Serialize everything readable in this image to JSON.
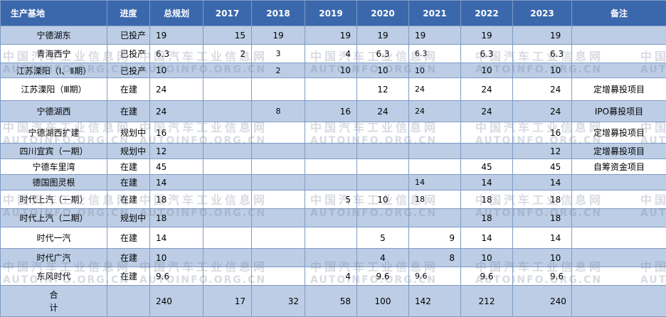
{
  "table": {
    "headers": [
      "生产基地",
      "进度",
      "总规划",
      "2017",
      "2018",
      "2019",
      "2020",
      "2021",
      "2022",
      "2023",
      "备注"
    ],
    "rows": [
      {
        "base": "宁德湖东",
        "status": "已投产",
        "total": "19",
        "y2017": "15",
        "y2018": "19",
        "y2019": "19",
        "y2020": "19",
        "y2021": "19",
        "y2022": "19",
        "y2023": "19",
        "note": ""
      },
      {
        "base": "青海西宁",
        "status": "已投产",
        "total": "6.3",
        "y2017": "2",
        "y2018": "3",
        "y2019": "4",
        "y2020": "6.3",
        "y2021": "6.3",
        "y2022": "6.3",
        "y2023": "6.3",
        "note": ""
      },
      {
        "base": "江苏溧阳（Ⅰ、Ⅱ期）",
        "status": "已投产",
        "total": "10",
        "y2017": "",
        "y2018": "2",
        "y2019": "10",
        "y2020": "10",
        "y2021": "10",
        "y2022": "10",
        "y2023": "10",
        "note": ""
      },
      {
        "base": "江苏溧阳（Ⅲ期）",
        "status": "在建",
        "total": "24",
        "y2017": "",
        "y2018": "",
        "y2019": "",
        "y2020": "12",
        "y2021": "24",
        "y2022": "24",
        "y2023": "24",
        "note": "定增募投项目"
      },
      {
        "base": "宁德湖西",
        "status": "在建",
        "total": "24",
        "y2017": "",
        "y2018": "8",
        "y2019": "16",
        "y2020": "24",
        "y2021": "24",
        "y2022": "24",
        "y2023": "24",
        "note": "IPO募投项目"
      },
      {
        "base": "宁德湖西扩建",
        "status": "规划中",
        "total": "16",
        "y2017": "",
        "y2018": "",
        "y2019": "",
        "y2020": "",
        "y2021": "",
        "y2022": "",
        "y2023": "16",
        "note": "定增募投项目"
      },
      {
        "base": "四川宜宾（一期）",
        "status": "规划中",
        "total": "12",
        "y2017": "",
        "y2018": "",
        "y2019": "",
        "y2020": "",
        "y2021": "",
        "y2022": "",
        "y2023": "12",
        "note": "定增募投项目"
      },
      {
        "base": "宁德车里湾",
        "status": "在建",
        "total": "45",
        "y2017": "",
        "y2018": "",
        "y2019": "",
        "y2020": "",
        "y2021": "",
        "y2022": "45",
        "y2023": "45",
        "note": "自筹资金项目"
      },
      {
        "base": "德国图灵根",
        "status": "在建",
        "total": "14",
        "y2017": "",
        "y2018": "",
        "y2019": "",
        "y2020": "",
        "y2021": "14",
        "y2022": "14",
        "y2023": "14",
        "note": ""
      },
      {
        "base": "时代上汽（一期）",
        "status": "在建",
        "total": "18",
        "y2017": "",
        "y2018": "",
        "y2019": "5",
        "y2020": "10",
        "y2021": "18",
        "y2022": "18",
        "y2023": "18",
        "note": ""
      },
      {
        "base": "时代上汽（二期）",
        "status": "规划中",
        "total": "18",
        "y2017": "",
        "y2018": "",
        "y2019": "",
        "y2020": "",
        "y2021": "",
        "y2022": "18",
        "y2023": "18",
        "note": ""
      },
      {
        "base": "时代一汽",
        "status": "在建",
        "total": "14",
        "y2017": "",
        "y2018": "",
        "y2019": "",
        "y2020": "5",
        "y2021": "9",
        "y2022": "14",
        "y2023": "14",
        "note": ""
      },
      {
        "base": "时代广汽",
        "status": "在建",
        "total": "10",
        "y2017": "",
        "y2018": "",
        "y2019": "",
        "y2020": "4",
        "y2021": "8",
        "y2022": "10",
        "y2023": "10",
        "note": ""
      },
      {
        "base": "东风时代",
        "status": "在建",
        "total": "9.6",
        "y2017": "",
        "y2018": "",
        "y2019": "4",
        "y2020": "9.6",
        "y2021": "9.6",
        "y2022": "9.6",
        "y2023": "9.6",
        "note": ""
      }
    ],
    "total_row": {
      "label_line1": "合",
      "label_line2": "计",
      "total": "240",
      "y2017": "17",
      "y2018": "32",
      "y2019": "58",
      "y2020": "100",
      "y2021": "142",
      "y2022": "212",
      "y2023": "240"
    }
  },
  "watermark": {
    "cn": "中国汽车工业信息网",
    "en": "AUTOINFO.ORG.CN"
  }
}
